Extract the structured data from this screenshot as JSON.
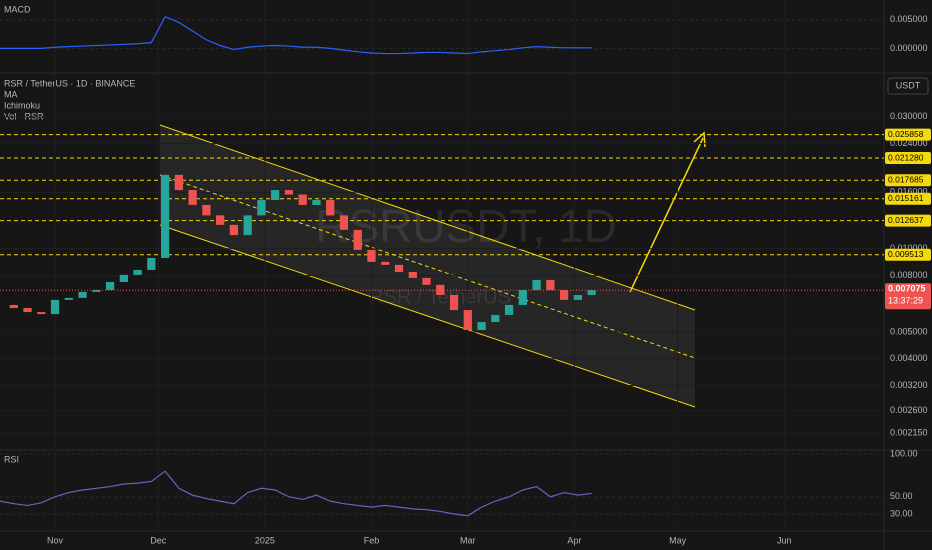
{
  "chart_data": {
    "type": "candlestick",
    "title": "RSR / TetherUS · 1D · BINANCE",
    "indicators": [
      "MA",
      "Ichimoku",
      "Vol · RSR"
    ],
    "watermark": "RSRUSDT, 1D",
    "watermark_sub": "RSR / TetherUS",
    "currency": "USDT",
    "log": true,
    "x": [
      -16,
      -12,
      -8,
      -4,
      0,
      4,
      8,
      12,
      16,
      20,
      24,
      28,
      32,
      36,
      40,
      44,
      48,
      52,
      56,
      60,
      64,
      68,
      72,
      76,
      80,
      84,
      88,
      92,
      96,
      100,
      104,
      108,
      112,
      116,
      120,
      124,
      128,
      132,
      136,
      140,
      144,
      148,
      152,
      156
    ],
    "values": [
      0.00626,
      0.0061,
      0.0059,
      0.0058,
      0.00653,
      0.00664,
      0.00698,
      0.00709,
      0.00758,
      0.00804,
      0.00838,
      0.00926,
      0.0185,
      0.0163,
      0.0144,
      0.0132,
      0.0122,
      0.0112,
      0.0132,
      0.015,
      0.0163,
      0.0157,
      0.0144,
      0.015,
      0.0132,
      0.0117,
      0.0099,
      0.00896,
      0.00874,
      0.00824,
      0.00784,
      0.0074,
      0.0068,
      0.006,
      0.00508,
      0.00543,
      0.00576,
      0.00626,
      0.00709,
      0.00771,
      0.00709,
      0.00653,
      0.0068,
      0.007075
    ],
    "xlim": [
      -16,
      241
    ],
    "xticks": [
      {
        "value": 0,
        "label": "Nov"
      },
      {
        "value": 30,
        "label": "Dec"
      },
      {
        "value": 61,
        "label": "2025"
      },
      {
        "value": 92,
        "label": "Feb"
      },
      {
        "value": 120,
        "label": "Mar"
      },
      {
        "value": 151,
        "label": "Apr"
      },
      {
        "value": 181,
        "label": "May"
      },
      {
        "value": 212,
        "label": "Jun"
      }
    ],
    "ylim": [
      0.00187,
      0.0425
    ],
    "yticks": [
      {
        "value": 0.03,
        "label": "0.030000"
      },
      {
        "value": 0.024,
        "label": "0.024000"
      },
      {
        "value": 0.016,
        "label": "0.016000"
      },
      {
        "value": 0.01,
        "label": "0.010000"
      },
      {
        "value": 0.008,
        "label": "0.008000"
      },
      {
        "value": 0.005,
        "label": "0.005000"
      },
      {
        "value": 0.004,
        "label": "0.004000"
      },
      {
        "value": 0.0032,
        "label": "0.003200"
      },
      {
        "value": 0.0026,
        "label": "0.002600"
      },
      {
        "value": 0.00215,
        "label": "0.002150"
      }
    ],
    "levels": [
      {
        "value": 0.025858,
        "label": "0.025858"
      },
      {
        "value": 0.02128,
        "label": "0.021280"
      },
      {
        "value": 0.017685,
        "label": "0.017685"
      },
      {
        "value": 0.015161,
        "label": "0.015161"
      },
      {
        "value": 0.012637,
        "label": "0.012637"
      },
      {
        "value": 0.009513,
        "label": "0.009513"
      }
    ],
    "level_color": "#f5d90a",
    "last_price": {
      "value": 0.007075,
      "label": "0.007075"
    },
    "countdown": "13:37:29",
    "up_color": "#26a69a",
    "down_color": "#ef5350",
    "macd": {
      "title": "MACD",
      "color": "#2962ff",
      "values": [
        0,
        0,
        0,
        0,
        0.0002,
        0.0003,
        0.0004,
        0.0005,
        0.0006,
        0.0007,
        0.0008,
        0.001,
        0.0055,
        0.0045,
        0.003,
        0.0015,
        0.0005,
        -0.0002,
        0.0002,
        0.0004,
        0.0005,
        0.0004,
        0.0002,
        0.0002,
        0,
        -0.0003,
        -0.0006,
        -0.0008,
        -0.0009,
        -0.0009,
        -0.0008,
        -0.0007,
        -0.0007,
        -0.0008,
        -0.0009,
        -0.0006,
        -0.0004,
        -0.0002,
        0.0001,
        0.0003,
        0.0002,
        0.0001,
        0.0001,
        0.0001
      ],
      "ylim": [
        -0.0041,
        0.0084
      ],
      "yticks": [
        {
          "value": 0.005,
          "label": "0.005000"
        },
        {
          "value": 0,
          "label": "0.000000"
        }
      ]
    },
    "rsi": {
      "title": "RSI",
      "color": "#7e57c2",
      "values": [
        45,
        42,
        40,
        43,
        50,
        55,
        58,
        60,
        62,
        65,
        66,
        68,
        80,
        60,
        52,
        48,
        45,
        42,
        55,
        60,
        58,
        50,
        47,
        52,
        45,
        42,
        40,
        38,
        40,
        38,
        36,
        35,
        33,
        30,
        28,
        38,
        45,
        50,
        58,
        62,
        50,
        55,
        52,
        54
      ],
      "ylim": [
        11.3,
        104.7
      ],
      "yticks": [
        {
          "value": 100,
          "label": "100.00"
        },
        {
          "value": 50,
          "label": "50.00"
        },
        {
          "value": 30,
          "label": "30.00"
        }
      ]
    }
  }
}
